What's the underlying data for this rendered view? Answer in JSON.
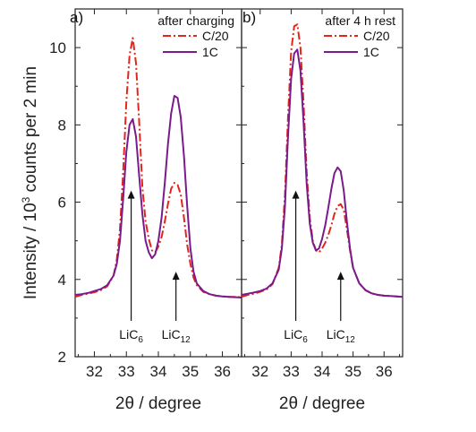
{
  "chart_data": {
    "type": "line",
    "ylabel": "Intensity / 10³ counts per 2 min",
    "ylabel_main": "Intensity / 10",
    "ylabel_exp": "3",
    "ylabel_rest": " counts per 2 min",
    "ylim": [
      2,
      11
    ],
    "yticks": [
      2,
      4,
      6,
      8,
      10
    ],
    "xlim": [
      31.4,
      36.6
    ],
    "xticks": [
      32,
      33,
      34,
      35,
      36
    ],
    "colors": {
      "C/20": "#e2261b",
      "1C": "#7a1b8c"
    },
    "panels": [
      {
        "label": "a)",
        "title": "after charging",
        "xlabel": "2θ / degree",
        "legend": [
          "C/20",
          "1C"
        ],
        "annotations": [
          {
            "text": "LiC",
            "sub": "6",
            "x": 33.15
          },
          {
            "text": "LiC",
            "sub": "12",
            "x": 34.55
          }
        ],
        "series": [
          {
            "name": "C/20",
            "style": "dashdot",
            "x": [
              31.4,
              31.6,
              31.8,
              32.0,
              32.2,
              32.4,
              32.6,
              32.7,
              32.8,
              32.9,
              33.0,
              33.1,
              33.2,
              33.3,
              33.4,
              33.5,
              33.6,
              33.7,
              33.8,
              33.9,
              34.0,
              34.1,
              34.2,
              34.3,
              34.4,
              34.5,
              34.6,
              34.7,
              34.8,
              34.9,
              35.0,
              35.1,
              35.2,
              35.4,
              35.6,
              35.8,
              36.0,
              36.2,
              36.4,
              36.6
            ],
            "y": [
              3.55,
              3.6,
              3.63,
              3.67,
              3.72,
              3.82,
              4.1,
              4.5,
              5.3,
              6.8,
              8.6,
              9.8,
              10.25,
              9.6,
              8.1,
              6.4,
              5.5,
              5.05,
              4.75,
              4.7,
              4.85,
              5.1,
              5.5,
              5.95,
              6.35,
              6.5,
              6.45,
              6.2,
              5.6,
              4.9,
              4.4,
              4.05,
              3.85,
              3.68,
              3.62,
              3.58,
              3.56,
              3.55,
              3.55,
              3.54
            ]
          },
          {
            "name": "1C",
            "style": "solid",
            "x": [
              31.4,
              31.6,
              31.8,
              32.0,
              32.2,
              32.4,
              32.6,
              32.7,
              32.8,
              32.9,
              33.0,
              33.1,
              33.2,
              33.3,
              33.4,
              33.5,
              33.6,
              33.7,
              33.8,
              33.9,
              34.0,
              34.1,
              34.2,
              34.3,
              34.4,
              34.5,
              34.6,
              34.7,
              34.8,
              34.9,
              35.0,
              35.1,
              35.2,
              35.4,
              35.6,
              35.8,
              36.0,
              36.2,
              36.4,
              36.6
            ],
            "y": [
              3.6,
              3.62,
              3.65,
              3.7,
              3.75,
              3.85,
              4.1,
              4.4,
              5.0,
              6.1,
              7.3,
              8.0,
              8.15,
              7.7,
              6.7,
              5.7,
              5.0,
              4.7,
              4.55,
              4.65,
              5.0,
              5.6,
              6.5,
              7.5,
              8.3,
              8.75,
              8.7,
              8.2,
              7.2,
              5.9,
              4.8,
              4.2,
              3.9,
              3.7,
              3.62,
              3.58,
              3.56,
              3.55,
              3.54,
              3.53
            ]
          }
        ]
      },
      {
        "label": "b)",
        "title": "after 4 h rest",
        "xlabel": "2θ / degree",
        "legend": [
          "C/20",
          "1C"
        ],
        "annotations": [
          {
            "text": "LiC",
            "sub": "6",
            "x": 33.15
          },
          {
            "text": "LiC",
            "sub": "12",
            "x": 34.6
          }
        ],
        "series": [
          {
            "name": "C/20",
            "style": "dashdot",
            "x": [
              31.4,
              31.6,
              31.8,
              32.0,
              32.2,
              32.4,
              32.6,
              32.7,
              32.8,
              32.9,
              33.0,
              33.1,
              33.2,
              33.3,
              33.4,
              33.5,
              33.6,
              33.7,
              33.8,
              33.9,
              34.0,
              34.1,
              34.2,
              34.3,
              34.4,
              34.5,
              34.6,
              34.7,
              34.8,
              34.9,
              35.0,
              35.2,
              35.4,
              35.6,
              35.8,
              36.0,
              36.2,
              36.4,
              36.6
            ],
            "y": [
              3.55,
              3.6,
              3.63,
              3.68,
              3.74,
              3.88,
              4.3,
              4.9,
              6.2,
              8.2,
              9.9,
              10.55,
              10.6,
              10.0,
              8.6,
              6.8,
              5.6,
              5.0,
              4.75,
              4.7,
              4.8,
              4.95,
              5.15,
              5.4,
              5.7,
              5.9,
              5.95,
              5.8,
              5.3,
              4.75,
              4.3,
              3.9,
              3.72,
              3.64,
              3.6,
              3.58,
              3.57,
              3.56,
              3.55
            ]
          },
          {
            "name": "1C",
            "style": "solid",
            "x": [
              31.4,
              31.6,
              31.8,
              32.0,
              32.2,
              32.4,
              32.6,
              32.7,
              32.8,
              32.9,
              33.0,
              33.1,
              33.2,
              33.3,
              33.4,
              33.5,
              33.6,
              33.7,
              33.8,
              33.9,
              34.0,
              34.1,
              34.2,
              34.3,
              34.4,
              34.5,
              34.6,
              34.7,
              34.8,
              34.9,
              35.0,
              35.2,
              35.4,
              35.6,
              35.8,
              36.0,
              36.2,
              36.4,
              36.6
            ],
            "y": [
              3.6,
              3.63,
              3.66,
              3.7,
              3.76,
              3.9,
              4.25,
              4.8,
              5.9,
              7.7,
              9.2,
              9.85,
              9.95,
              9.4,
              8.1,
              6.5,
              5.45,
              4.95,
              4.75,
              4.8,
              5.05,
              5.4,
              5.85,
              6.35,
              6.75,
              6.9,
              6.8,
              6.3,
              5.5,
              4.8,
              4.3,
              3.9,
              3.72,
              3.64,
              3.6,
              3.58,
              3.57,
              3.56,
              3.55
            ]
          }
        ]
      }
    ]
  }
}
